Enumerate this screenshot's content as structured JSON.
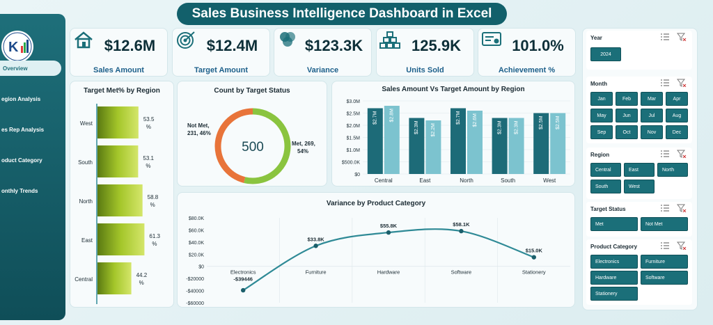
{
  "header": {
    "title": "Sales Business Intelligence Dashboard in Excel"
  },
  "sidebar": {
    "logo_text": "K",
    "items": [
      {
        "label": "Overview",
        "active": true
      },
      {
        "label": "egion Analysis",
        "active": false
      },
      {
        "label": "es Rep Analysis",
        "active": false
      },
      {
        "label": "oduct Category",
        "active": false
      },
      {
        "label": "onthly Trends",
        "active": false
      }
    ]
  },
  "kpis": [
    {
      "value": "$12.6M",
      "label": "Sales Amount",
      "icon": "house-icon"
    },
    {
      "value": "$12.4M",
      "label": "Target Amount",
      "icon": "target-icon"
    },
    {
      "value": "$123.3K",
      "label": "Variance",
      "icon": "venn-icon"
    },
    {
      "value": "125.9K",
      "label": "Units Sold",
      "icon": "boxes-icon"
    },
    {
      "value": "101.0%",
      "label": "Achievement %",
      "icon": "certificate-icon"
    }
  ],
  "target_met": {
    "title": "Target Met% by Region",
    "chart_data": {
      "type": "bar",
      "orientation": "horizontal",
      "categories": [
        "West",
        "South",
        "North",
        "East",
        "Central"
      ],
      "values": [
        53.5,
        53.1,
        58.8,
        61.3,
        44.2
      ],
      "labels": [
        "53.5 %",
        "53.1 %",
        "58.8 %",
        "61.3 %",
        "44.2 %"
      ],
      "xlim": [
        0,
        100
      ]
    }
  },
  "count_status": {
    "title": "Count by Target Status",
    "center": "500",
    "chart_data": {
      "type": "pie",
      "categories": [
        "Met",
        "Not Met"
      ],
      "values": [
        269,
        231
      ],
      "labels_line1": [
        "Met, 269,",
        "Not Met,"
      ],
      "labels_line2": [
        "54%",
        "231, 46%"
      ],
      "colors": [
        "#8ac43f",
        "#e8743a"
      ]
    }
  },
  "sales_vs_target": {
    "title": "Sales Amount Vs Target Amount by Region",
    "chart_data": {
      "type": "bar",
      "categories": [
        "Central",
        "East",
        "North",
        "South",
        "West"
      ],
      "series": [
        {
          "values": [
            2.7,
            2.3,
            2.7,
            2.3,
            2.5
          ],
          "labels": [
            "$2.7M",
            "$2.3M",
            "$2.7M",
            "$2.3M",
            "$2.5M"
          ]
        },
        {
          "values": [
            2.8,
            2.2,
            2.6,
            2.3,
            2.5
          ],
          "labels": [
            "$2.8M",
            "$2.2M",
            "$2.6M",
            "$2.3M",
            "$2.5M"
          ]
        }
      ],
      "ylim": [
        0,
        3.0
      ],
      "yticks": [
        0,
        0.5,
        1.0,
        1.5,
        2.0,
        2.5,
        3.0
      ],
      "ytick_labels": [
        "$0",
        "$500.0K",
        "$1.0M",
        "$1.5M",
        "$2.0M",
        "$2.5M",
        "$3.0M"
      ],
      "colors": [
        "#1d6b78",
        "#7cc3cf"
      ]
    }
  },
  "variance_cat": {
    "title": "Variance by Product Category",
    "chart_data": {
      "type": "line",
      "categories": [
        "Electronics",
        "Furniture",
        "Hardware",
        "Software",
        "Stationery"
      ],
      "values": [
        -39446,
        33800,
        55800,
        58100,
        15000
      ],
      "labels": [
        "-$39446",
        "$33.8K",
        "$55.8K",
        "$58.1K",
        "$15.0K"
      ],
      "ylim": [
        -60000,
        80000
      ],
      "yticks": [
        -60000,
        -40000,
        -20000,
        0,
        20000,
        40000,
        60000,
        80000
      ],
      "ytick_labels": [
        "-$60000",
        "-$40000",
        "-$20000",
        "$0",
        "$20.0K",
        "$40.0K",
        "$60.0K",
        "$80.0K"
      ],
      "color": "#2f8a96"
    }
  },
  "slicers": {
    "year": {
      "title": "Year",
      "items": [
        "2024"
      ]
    },
    "month": {
      "title": "Month",
      "items": [
        "Jan",
        "Feb",
        "Mar",
        "Apr",
        "May",
        "Jun",
        "Jul",
        "Aug",
        "Sep",
        "Oct",
        "Nov",
        "Dec"
      ]
    },
    "region": {
      "title": "Region",
      "items": [
        "Central",
        "East",
        "North",
        "South",
        "West"
      ]
    },
    "status": {
      "title": "Target Status",
      "items": [
        "Met",
        "Not Met"
      ]
    },
    "category": {
      "title": "Product Category",
      "items": [
        "Electronics",
        "Furniture",
        "Hardware",
        "Software",
        "Stationery"
      ]
    }
  }
}
